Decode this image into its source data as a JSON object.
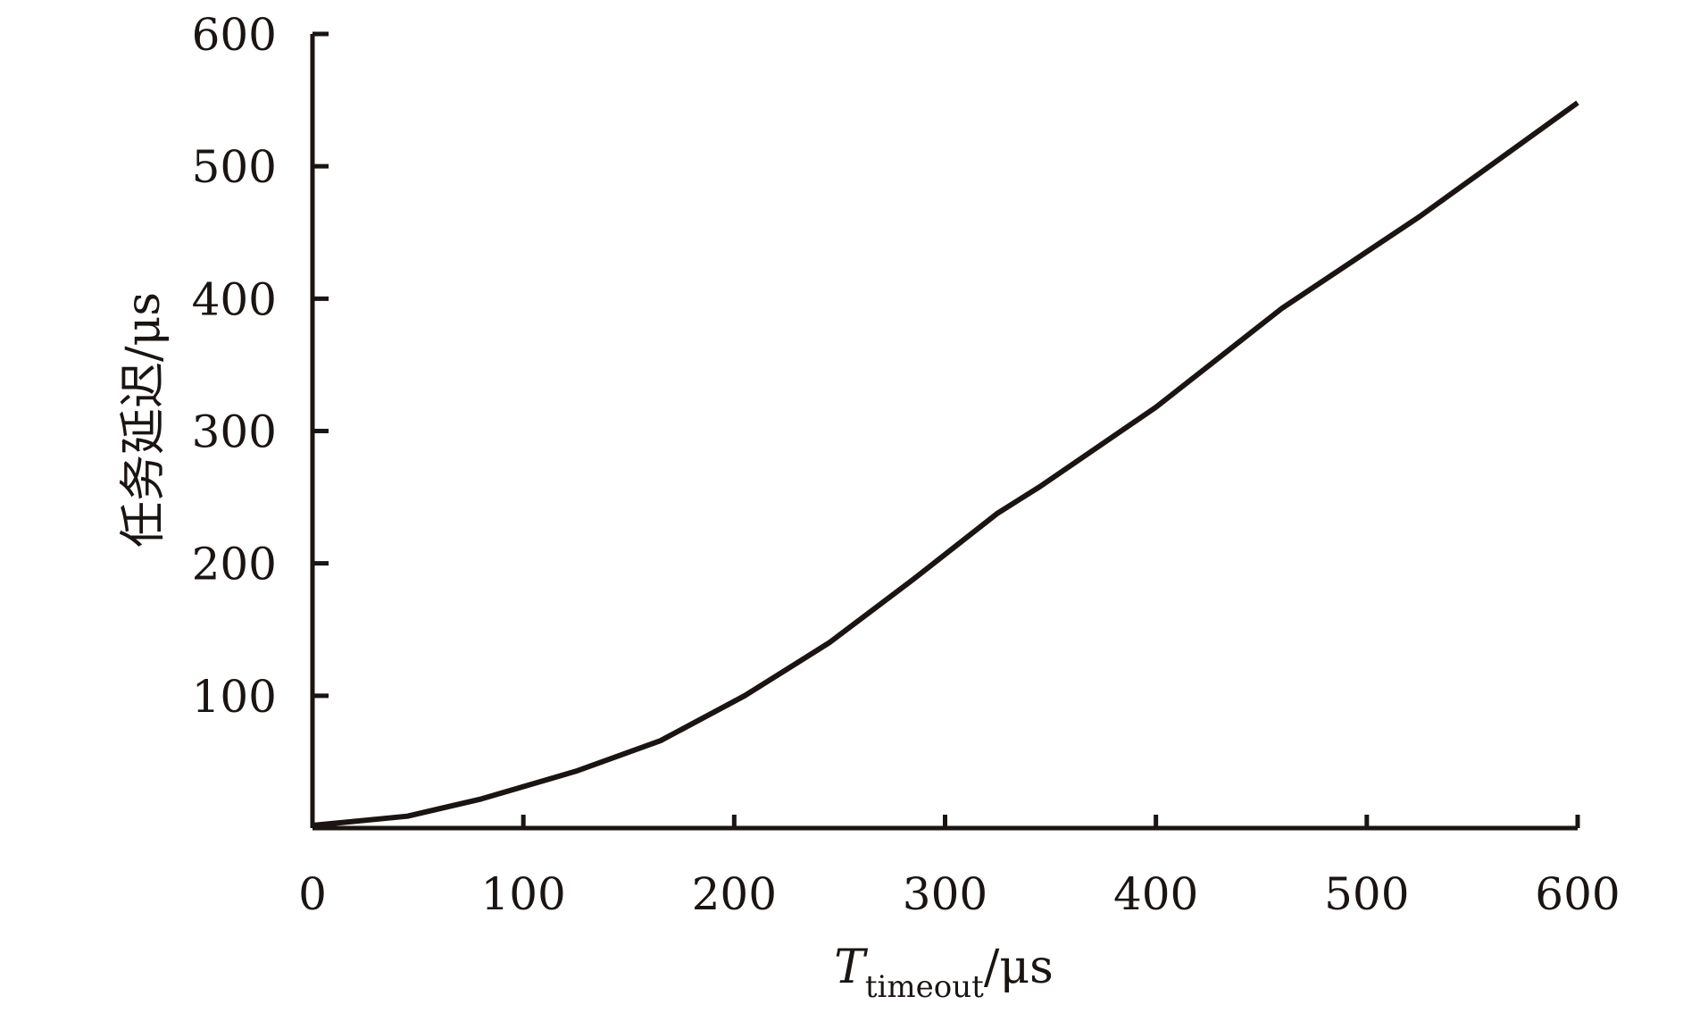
{
  "chart_data": {
    "type": "line",
    "title": "",
    "xlabel": {
      "main": "T",
      "subscript": "timeout",
      "unit": "/μs"
    },
    "ylabel": "任务延迟/μs",
    "xlim": [
      0,
      600
    ],
    "ylim": [
      0,
      600
    ],
    "x_ticks": [
      0,
      100,
      200,
      300,
      400,
      500,
      600
    ],
    "y_ticks": [
      100,
      200,
      300,
      400,
      500,
      600
    ],
    "x_tick_labels": [
      "0",
      "100",
      "200",
      "300",
      "400",
      "500",
      "600"
    ],
    "y_tick_labels": [
      "100",
      "200",
      "300",
      "400",
      "500",
      "600"
    ],
    "grid": false,
    "legend": "none",
    "series": [
      {
        "color": "#1a1512",
        "x": [
          0,
          45,
          80,
          125,
          165,
          205,
          245,
          285,
          325,
          345,
          400,
          460,
          525,
          600
        ],
        "y": [
          2,
          9,
          22,
          43,
          66,
          100,
          140,
          188,
          238,
          258,
          318,
          393,
          462,
          548
        ]
      }
    ]
  }
}
